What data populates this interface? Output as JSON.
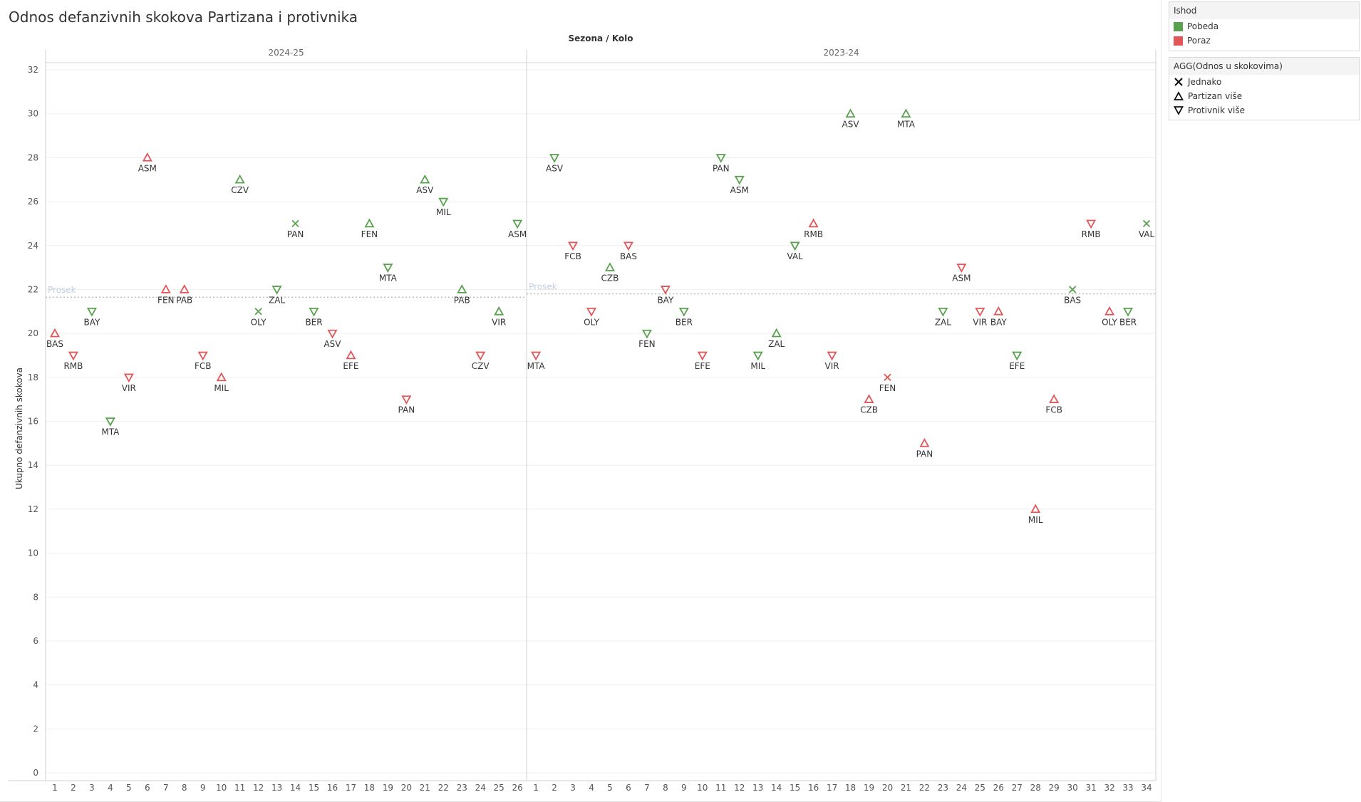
{
  "title": "Odnos defanzivnih skokova Partizana i protivnika",
  "legend_color": {
    "title": "Ishod",
    "items": [
      {
        "label": "Pobeda",
        "color": "#59a14f"
      },
      {
        "label": "Poraz",
        "color": "#e15759"
      }
    ]
  },
  "legend_shape": {
    "title": "AGG(Odnos u skokovima)",
    "items": [
      {
        "label": "Jednako",
        "shape": "x-icon"
      },
      {
        "label": "Partizan više",
        "shape": "triangle-up-icon"
      },
      {
        "label": "Protivnik više",
        "shape": "triangle-down-icon"
      }
    ]
  },
  "chart_data": {
    "type": "scatter",
    "column_header": "Sezona / Kolo",
    "ylabel": "Ukupno defanzivnih skokova",
    "ylim": [
      0,
      32
    ],
    "yticks": [
      0,
      2,
      4,
      6,
      8,
      10,
      12,
      14,
      16,
      18,
      20,
      22,
      24,
      26,
      28,
      30,
      32
    ],
    "grid": true,
    "reference_label": "Prosek",
    "panes": [
      {
        "season": "2024-25",
        "rounds": 26,
        "average": 21.65,
        "points": [
          {
            "x": 1,
            "y": 20,
            "label": "BAS",
            "result": "Poraz",
            "shape": "up"
          },
          {
            "x": 2,
            "y": 19,
            "label": "RMB",
            "result": "Poraz",
            "shape": "down"
          },
          {
            "x": 3,
            "y": 21,
            "label": "BAY",
            "result": "Pobeda",
            "shape": "down"
          },
          {
            "x": 4,
            "y": 16,
            "label": "MTA",
            "result": "Pobeda",
            "shape": "down"
          },
          {
            "x": 5,
            "y": 18,
            "label": "VIR",
            "result": "Poraz",
            "shape": "down"
          },
          {
            "x": 6,
            "y": 28,
            "label": "ASM",
            "result": "Poraz",
            "shape": "up"
          },
          {
            "x": 7,
            "y": 22,
            "label": "FEN",
            "result": "Poraz",
            "shape": "up"
          },
          {
            "x": 8,
            "y": 22,
            "label": "PAB",
            "result": "Poraz",
            "shape": "up"
          },
          {
            "x": 9,
            "y": 19,
            "label": "FCB",
            "result": "Poraz",
            "shape": "down"
          },
          {
            "x": 10,
            "y": 18,
            "label": "MIL",
            "result": "Poraz",
            "shape": "up"
          },
          {
            "x": 11,
            "y": 27,
            "label": "CZV",
            "result": "Pobeda",
            "shape": "up"
          },
          {
            "x": 12,
            "y": 21,
            "label": "OLY",
            "result": "Pobeda",
            "shape": "x"
          },
          {
            "x": 13,
            "y": 22,
            "label": "ZAL",
            "result": "Pobeda",
            "shape": "down"
          },
          {
            "x": 14,
            "y": 25,
            "label": "PAN",
            "result": "Pobeda",
            "shape": "x"
          },
          {
            "x": 15,
            "y": 21,
            "label": "BER",
            "result": "Pobeda",
            "shape": "down"
          },
          {
            "x": 16,
            "y": 20,
            "label": "ASV",
            "result": "Poraz",
            "shape": "down"
          },
          {
            "x": 17,
            "y": 19,
            "label": "EFE",
            "result": "Poraz",
            "shape": "up"
          },
          {
            "x": 18,
            "y": 25,
            "label": "FEN",
            "result": "Pobeda",
            "shape": "up"
          },
          {
            "x": 19,
            "y": 23,
            "label": "MTA",
            "result": "Pobeda",
            "shape": "down"
          },
          {
            "x": 20,
            "y": 17,
            "label": "PAN",
            "result": "Poraz",
            "shape": "down"
          },
          {
            "x": 21,
            "y": 27,
            "label": "ASV",
            "result": "Pobeda",
            "shape": "up"
          },
          {
            "x": 22,
            "y": 26,
            "label": "MIL",
            "result": "Pobeda",
            "shape": "down"
          },
          {
            "x": 23,
            "y": 22,
            "label": "PAB",
            "result": "Pobeda",
            "shape": "up"
          },
          {
            "x": 24,
            "y": 19,
            "label": "CZV",
            "result": "Poraz",
            "shape": "down"
          },
          {
            "x": 25,
            "y": 21,
            "label": "VIR",
            "result": "Pobeda",
            "shape": "up"
          },
          {
            "x": 26,
            "y": 25,
            "label": "ASM",
            "result": "Pobeda",
            "shape": "down"
          }
        ]
      },
      {
        "season": "2023-24",
        "rounds": 34,
        "average": 21.8,
        "points": [
          {
            "x": 1,
            "y": 19,
            "label": "MTA",
            "result": "Poraz",
            "shape": "down"
          },
          {
            "x": 2,
            "y": 28,
            "label": "ASV",
            "result": "Pobeda",
            "shape": "down"
          },
          {
            "x": 3,
            "y": 24,
            "label": "FCB",
            "result": "Poraz",
            "shape": "down"
          },
          {
            "x": 4,
            "y": 21,
            "label": "OLY",
            "result": "Poraz",
            "shape": "down"
          },
          {
            "x": 5,
            "y": 23,
            "label": "CZB",
            "result": "Pobeda",
            "shape": "up"
          },
          {
            "x": 6,
            "y": 24,
            "label": "BAS",
            "result": "Poraz",
            "shape": "down"
          },
          {
            "x": 7,
            "y": 20,
            "label": "FEN",
            "result": "Pobeda",
            "shape": "down"
          },
          {
            "x": 8,
            "y": 22,
            "label": "BAY",
            "result": "Poraz",
            "shape": "down"
          },
          {
            "x": 9,
            "y": 21,
            "label": "BER",
            "result": "Pobeda",
            "shape": "down"
          },
          {
            "x": 10,
            "y": 19,
            "label": "EFE",
            "result": "Poraz",
            "shape": "down"
          },
          {
            "x": 11,
            "y": 28,
            "label": "PAN",
            "result": "Pobeda",
            "shape": "down"
          },
          {
            "x": 12,
            "y": 27,
            "label": "ASM",
            "result": "Pobeda",
            "shape": "down"
          },
          {
            "x": 13,
            "y": 19,
            "label": "MIL",
            "result": "Pobeda",
            "shape": "down"
          },
          {
            "x": 14,
            "y": 20,
            "label": "ZAL",
            "result": "Pobeda",
            "shape": "up"
          },
          {
            "x": 15,
            "y": 24,
            "label": "VAL",
            "result": "Pobeda",
            "shape": "down"
          },
          {
            "x": 16,
            "y": 25,
            "label": "RMB",
            "result": "Poraz",
            "shape": "up"
          },
          {
            "x": 17,
            "y": 19,
            "label": "VIR",
            "result": "Poraz",
            "shape": "down"
          },
          {
            "x": 18,
            "y": 30,
            "label": "ASV",
            "result": "Pobeda",
            "shape": "up"
          },
          {
            "x": 19,
            "y": 17,
            "label": "CZB",
            "result": "Poraz",
            "shape": "up"
          },
          {
            "x": 20,
            "y": 18,
            "label": "FEN",
            "result": "Poraz",
            "shape": "x"
          },
          {
            "x": 21,
            "y": 30,
            "label": "MTA",
            "result": "Pobeda",
            "shape": "up"
          },
          {
            "x": 22,
            "y": 15,
            "label": "PAN",
            "result": "Poraz",
            "shape": "up"
          },
          {
            "x": 23,
            "y": 21,
            "label": "ZAL",
            "result": "Pobeda",
            "shape": "down"
          },
          {
            "x": 24,
            "y": 23,
            "label": "ASM",
            "result": "Poraz",
            "shape": "down"
          },
          {
            "x": 25,
            "y": 21,
            "label": "VIR",
            "result": "Poraz",
            "shape": "down"
          },
          {
            "x": 26,
            "y": 21,
            "label": "BAY",
            "result": "Poraz",
            "shape": "up"
          },
          {
            "x": 27,
            "y": 19,
            "label": "EFE",
            "result": "Pobeda",
            "shape": "down"
          },
          {
            "x": 28,
            "y": 12,
            "label": "MIL",
            "result": "Poraz",
            "shape": "up"
          },
          {
            "x": 29,
            "y": 17,
            "label": "FCB",
            "result": "Poraz",
            "shape": "up"
          },
          {
            "x": 30,
            "y": 22,
            "label": "BAS",
            "result": "Pobeda",
            "shape": "x"
          },
          {
            "x": 31,
            "y": 25,
            "label": "RMB",
            "result": "Poraz",
            "shape": "down"
          },
          {
            "x": 32,
            "y": 21,
            "label": "OLY",
            "result": "Poraz",
            "shape": "up"
          },
          {
            "x": 33,
            "y": 21,
            "label": "BER",
            "result": "Pobeda",
            "shape": "down"
          },
          {
            "x": 34,
            "y": 25,
            "label": "VAL",
            "result": "Pobeda",
            "shape": "x"
          }
        ]
      }
    ]
  }
}
